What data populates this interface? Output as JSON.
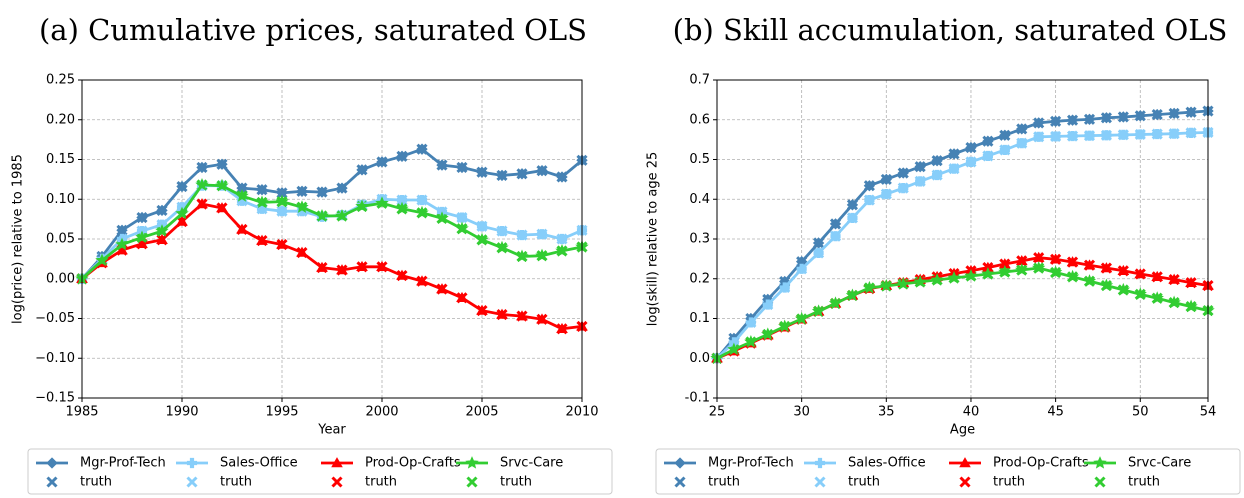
{
  "chart_data": [
    {
      "type": "line",
      "title": "(a) Cumulative prices, saturated OLS",
      "xlabel": "Year",
      "ylabel": "log(price) relative to 1985",
      "x": [
        1985,
        1986,
        1987,
        1988,
        1989,
        1990,
        1991,
        1992,
        1993,
        1994,
        1995,
        1996,
        1997,
        1998,
        1999,
        2000,
        2001,
        2002,
        2003,
        2004,
        2005,
        2006,
        2007,
        2008,
        2009,
        2010
      ],
      "xlim": [
        1985,
        2010
      ],
      "xticks": [
        1985,
        1990,
        1995,
        2000,
        2005,
        2010
      ],
      "ylim": [
        -0.15,
        0.25
      ],
      "yticks": [
        {
          "value": -0.15,
          "label": "−0.15"
        },
        {
          "value": -0.1,
          "label": "−0.10"
        },
        {
          "value": -0.05,
          "label": "−0.05"
        },
        {
          "value": 0,
          "label": "0.00"
        },
        {
          "value": 0.05,
          "label": "0.05"
        },
        {
          "value": 0.1,
          "label": "0.10"
        },
        {
          "value": 0.15,
          "label": "0.15"
        },
        {
          "value": 0.2,
          "label": "0.20"
        },
        {
          "value": 0.25,
          "label": "0.25"
        }
      ],
      "grid": true,
      "legend": "below",
      "series": [
        {
          "name": "Mgr-Prof-Tech",
          "color": "#4682b4",
          "marker": "diamond",
          "values": [
            0,
            0.028,
            0.061,
            0.077,
            0.086,
            0.116,
            0.14,
            0.144,
            0.114,
            0.112,
            0.108,
            0.11,
            0.109,
            0.114,
            0.137,
            0.147,
            0.154,
            0.163,
            0.143,
            0.14,
            0.134,
            0.13,
            0.132,
            0.136,
            0.128,
            0.149
          ]
        },
        {
          "name": "Sales-Office",
          "color": "#87cefa",
          "marker": "plus",
          "values": [
            0,
            0.025,
            0.05,
            0.06,
            0.068,
            0.09,
            0.117,
            0.117,
            0.098,
            0.088,
            0.085,
            0.085,
            0.078,
            0.08,
            0.093,
            0.1,
            0.099,
            0.099,
            0.084,
            0.077,
            0.066,
            0.06,
            0.055,
            0.056,
            0.05,
            0.061
          ]
        },
        {
          "name": "Prod-Op-Crafts",
          "color": "#ff0000",
          "marker": "triangle",
          "values": [
            0,
            0.02,
            0.036,
            0.044,
            0.049,
            0.072,
            0.094,
            0.089,
            0.062,
            0.048,
            0.043,
            0.033,
            0.014,
            0.011,
            0.015,
            0.015,
            0.004,
            -0.003,
            -0.013,
            -0.024,
            -0.04,
            -0.045,
            -0.047,
            -0.051,
            -0.063,
            -0.06
          ]
        },
        {
          "name": "Srvc-Care",
          "color": "#32cd32",
          "marker": "star",
          "values": [
            0,
            0.023,
            0.043,
            0.052,
            0.06,
            0.082,
            0.118,
            0.117,
            0.104,
            0.096,
            0.097,
            0.09,
            0.079,
            0.079,
            0.091,
            0.095,
            0.088,
            0.083,
            0.076,
            0.063,
            0.049,
            0.039,
            0.028,
            0.029,
            0.035,
            0.04
          ]
        }
      ],
      "truth_series": [
        {
          "name": "truth",
          "color": "#4682b4",
          "values": [
            0,
            0.028,
            0.061,
            0.077,
            0.086,
            0.116,
            0.14,
            0.144,
            0.114,
            0.112,
            0.108,
            0.11,
            0.109,
            0.114,
            0.137,
            0.147,
            0.154,
            0.163,
            0.143,
            0.14,
            0.134,
            0.13,
            0.132,
            0.136,
            0.128,
            0.149
          ]
        },
        {
          "name": "truth",
          "color": "#87cefa",
          "values": [
            0,
            0.025,
            0.05,
            0.06,
            0.068,
            0.09,
            0.117,
            0.117,
            0.098,
            0.088,
            0.085,
            0.085,
            0.078,
            0.08,
            0.093,
            0.1,
            0.099,
            0.099,
            0.084,
            0.077,
            0.066,
            0.06,
            0.055,
            0.056,
            0.05,
            0.061
          ]
        },
        {
          "name": "truth",
          "color": "#ff0000",
          "values": [
            0,
            0.02,
            0.036,
            0.044,
            0.049,
            0.072,
            0.094,
            0.089,
            0.062,
            0.048,
            0.043,
            0.033,
            0.014,
            0.011,
            0.015,
            0.015,
            0.004,
            -0.003,
            -0.013,
            -0.024,
            -0.04,
            -0.045,
            -0.047,
            -0.051,
            -0.063,
            -0.06
          ]
        },
        {
          "name": "truth",
          "color": "#32cd32",
          "values": [
            0,
            0.023,
            0.043,
            0.052,
            0.06,
            0.082,
            0.118,
            0.117,
            0.104,
            0.096,
            0.097,
            0.09,
            0.079,
            0.079,
            0.091,
            0.095,
            0.088,
            0.083,
            0.076,
            0.063,
            0.049,
            0.039,
            0.028,
            0.029,
            0.035,
            0.04
          ]
        }
      ]
    },
    {
      "type": "line",
      "title": "(b) Skill accumulation, saturated OLS",
      "xlabel": "Age",
      "ylabel": "log(skill) relative to age 25",
      "x": [
        25,
        26,
        27,
        28,
        29,
        30,
        31,
        32,
        33,
        34,
        35,
        36,
        37,
        38,
        39,
        40,
        41,
        42,
        43,
        44,
        45,
        46,
        47,
        48,
        49,
        50,
        51,
        52,
        53,
        54
      ],
      "xlim": [
        25,
        54
      ],
      "xticks": [
        25,
        30,
        35,
        40,
        45,
        50,
        54
      ],
      "ylim": [
        -0.1,
        0.7
      ],
      "yticks": [
        -0.1,
        {
          "value": 0,
          "label": "0.0"
        },
        0.1,
        0.2,
        0.3,
        0.4,
        0.5,
        0.6,
        0.7
      ],
      "grid": true,
      "legend": "below",
      "series": [
        {
          "name": "Mgr-Prof-Tech",
          "color": "#4682b4",
          "marker": "diamond",
          "values": [
            0,
            0.05,
            0.1,
            0.148,
            0.193,
            0.243,
            0.29,
            0.338,
            0.386,
            0.434,
            0.45,
            0.466,
            0.482,
            0.497,
            0.514,
            0.53,
            0.546,
            0.561,
            0.577,
            0.592,
            0.596,
            0.599,
            0.601,
            0.605,
            0.607,
            0.61,
            0.613,
            0.616,
            0.619,
            0.622
          ]
        },
        {
          "name": "Sales-Office",
          "color": "#87cefa",
          "marker": "plus",
          "values": [
            0,
            0.04,
            0.09,
            0.135,
            0.178,
            0.225,
            0.265,
            0.307,
            0.353,
            0.398,
            0.413,
            0.428,
            0.445,
            0.461,
            0.477,
            0.494,
            0.509,
            0.524,
            0.541,
            0.557,
            0.558,
            0.559,
            0.56,
            0.561,
            0.562,
            0.563,
            0.564,
            0.565,
            0.567,
            0.568
          ]
        },
        {
          "name": "Prod-Op-Crafts",
          "color": "#ff0000",
          "marker": "triangle",
          "values": [
            0,
            0.018,
            0.038,
            0.058,
            0.078,
            0.098,
            0.118,
            0.138,
            0.158,
            0.175,
            0.183,
            0.19,
            0.198,
            0.205,
            0.213,
            0.22,
            0.228,
            0.237,
            0.245,
            0.253,
            0.249,
            0.242,
            0.234,
            0.227,
            0.22,
            0.212,
            0.205,
            0.198,
            0.19,
            0.183
          ]
        },
        {
          "name": "Srvc-Care",
          "color": "#32cd32",
          "marker": "star",
          "values": [
            0,
            0.022,
            0.041,
            0.06,
            0.08,
            0.099,
            0.118,
            0.138,
            0.158,
            0.177,
            0.182,
            0.187,
            0.192,
            0.197,
            0.202,
            0.207,
            0.212,
            0.217,
            0.222,
            0.227,
            0.216,
            0.205,
            0.194,
            0.183,
            0.172,
            0.161,
            0.151,
            0.14,
            0.13,
            0.12
          ]
        }
      ],
      "truth_series": [
        {
          "name": "truth",
          "color": "#4682b4",
          "values": [
            0,
            0.05,
            0.1,
            0.148,
            0.193,
            0.243,
            0.29,
            0.338,
            0.386,
            0.434,
            0.45,
            0.466,
            0.482,
            0.497,
            0.514,
            0.53,
            0.546,
            0.561,
            0.577,
            0.592,
            0.596,
            0.599,
            0.601,
            0.605,
            0.607,
            0.61,
            0.613,
            0.616,
            0.619,
            0.622
          ]
        },
        {
          "name": "truth",
          "color": "#87cefa",
          "values": [
            0,
            0.04,
            0.09,
            0.135,
            0.178,
            0.225,
            0.265,
            0.307,
            0.353,
            0.398,
            0.413,
            0.428,
            0.445,
            0.461,
            0.477,
            0.494,
            0.509,
            0.524,
            0.541,
            0.557,
            0.558,
            0.559,
            0.56,
            0.561,
            0.562,
            0.563,
            0.564,
            0.565,
            0.567,
            0.568
          ]
        },
        {
          "name": "truth",
          "color": "#ff0000",
          "values": [
            0,
            0.018,
            0.038,
            0.058,
            0.078,
            0.098,
            0.118,
            0.138,
            0.158,
            0.175,
            0.183,
            0.19,
            0.198,
            0.205,
            0.213,
            0.22,
            0.228,
            0.237,
            0.245,
            0.253,
            0.249,
            0.242,
            0.234,
            0.227,
            0.22,
            0.212,
            0.205,
            0.198,
            0.19,
            0.183
          ]
        },
        {
          "name": "truth",
          "color": "#32cd32",
          "values": [
            0,
            0.022,
            0.041,
            0.06,
            0.08,
            0.099,
            0.118,
            0.138,
            0.158,
            0.177,
            0.182,
            0.187,
            0.192,
            0.197,
            0.202,
            0.207,
            0.212,
            0.217,
            0.222,
            0.227,
            0.216,
            0.205,
            0.194,
            0.183,
            0.172,
            0.161,
            0.151,
            0.14,
            0.13,
            0.12
          ]
        }
      ]
    }
  ]
}
